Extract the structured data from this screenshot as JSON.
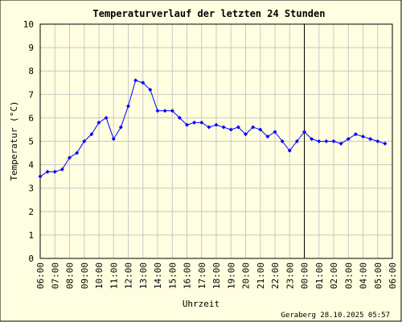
{
  "chart_data": {
    "type": "line",
    "title": "Temperaturverlauf der letzten 24 Stunden",
    "xlabel": "Uhrzeit",
    "ylabel": "Temperatur (°C)",
    "ylim": [
      0,
      10
    ],
    "yticks": [
      "0",
      "1",
      "2",
      "3",
      "4",
      "5",
      "6",
      "7",
      "8",
      "9",
      "10"
    ],
    "xticks": [
      "06:00",
      "07:00",
      "08:00",
      "09:00",
      "10:00",
      "11:00",
      "12:00",
      "13:00",
      "14:00",
      "15:00",
      "16:00",
      "17:00",
      "18:00",
      "19:00",
      "20:00",
      "21:00",
      "22:00",
      "23:00",
      "00:00",
      "01:00",
      "02:00",
      "03:00",
      "04:00",
      "05:00",
      "06:00"
    ],
    "xlim": [
      0,
      24
    ],
    "grid": true,
    "marker_line_x": 18,
    "series_color": "#0000ff",
    "x": [
      0,
      0.5,
      1,
      1.5,
      2,
      2.5,
      3,
      3.5,
      4,
      4.5,
      5,
      5.5,
      6,
      6.5,
      7,
      7.5,
      8,
      8.5,
      9,
      9.5,
      10,
      10.5,
      11,
      11.5,
      12,
      12.5,
      13,
      13.5,
      14,
      14.5,
      15,
      15.5,
      16,
      16.5,
      17,
      17.5,
      18,
      18.5,
      19,
      19.5,
      20,
      20.5,
      21,
      21.5,
      22,
      22.5,
      23,
      23.5
    ],
    "values": [
      3.5,
      3.7,
      3.7,
      3.8,
      4.3,
      4.5,
      5.0,
      5.3,
      5.8,
      6.0,
      5.1,
      5.6,
      6.5,
      7.6,
      7.5,
      7.2,
      6.3,
      6.3,
      6.3,
      6.0,
      5.7,
      5.8,
      5.8,
      5.6,
      5.7,
      5.6,
      5.5,
      5.6,
      5.3,
      5.6,
      5.5,
      5.2,
      5.4,
      5.0,
      4.6,
      5.0,
      5.4,
      5.1,
      5.0,
      5.0,
      5.0,
      4.9,
      5.1,
      5.3,
      5.2,
      5.1,
      5.0,
      4.9
    ]
  },
  "footer": "Geraberg 28.10.2025 05:57"
}
